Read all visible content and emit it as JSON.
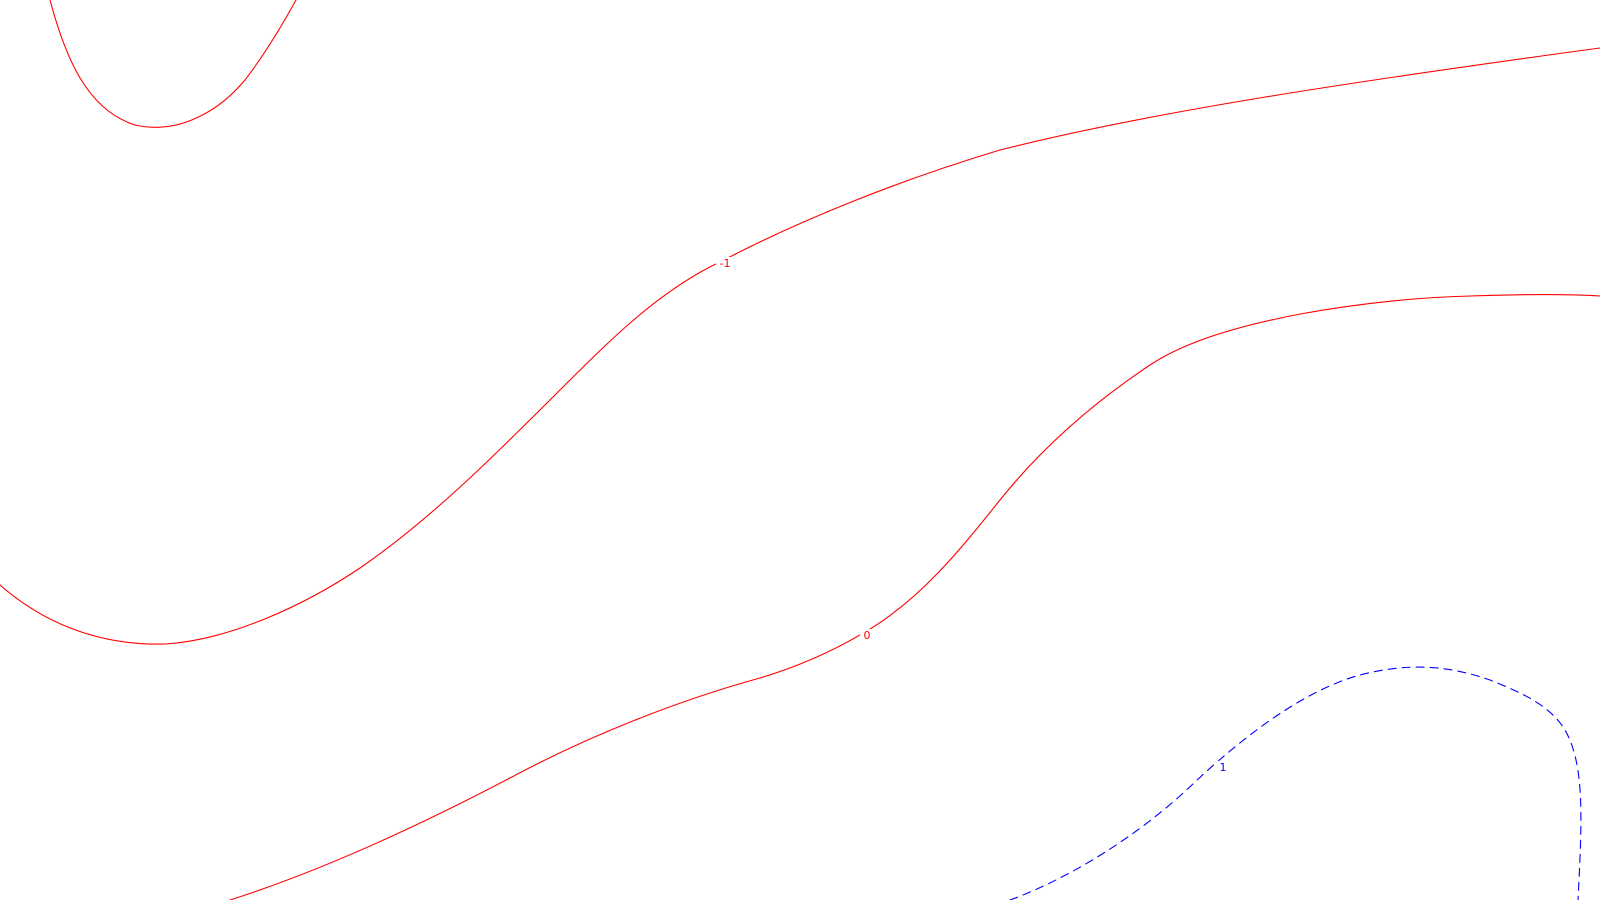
{
  "map": {
    "background_color": "#ffffff",
    "contours": [
      {
        "id": "upper-left",
        "value": "-1",
        "color": "#ff0000",
        "style": "solid",
        "label": ""
      },
      {
        "id": "main-minus-one",
        "value": "-1",
        "color": "#ff0000",
        "style": "solid",
        "label": "-1"
      },
      {
        "id": "main-zero",
        "value": "0",
        "color": "#ff0000",
        "style": "solid",
        "label": "0"
      },
      {
        "id": "lower-right-one",
        "value": "1",
        "color": "#0000ff",
        "style": "dashed",
        "label": "1"
      }
    ]
  }
}
